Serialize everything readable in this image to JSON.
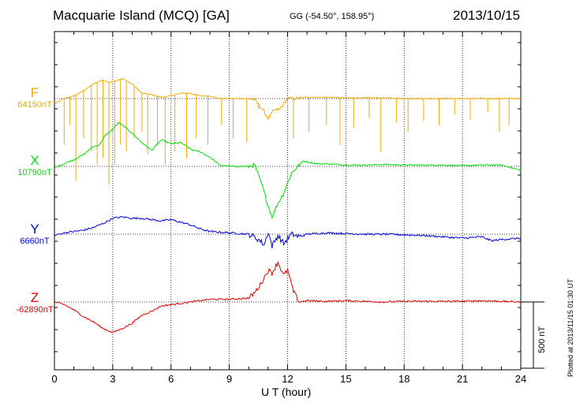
{
  "header": {
    "title": "Macquarie Island (MCQ)  [GA]",
    "coords": "GG (-54.50°, 158.95°)",
    "date": "2013/10/15"
  },
  "footnote": "Plotted at 2013/11/15 01:30 UT",
  "chart_data": {
    "type": "line",
    "xlabel": "U T (hour)",
    "xlim": [
      0,
      24
    ],
    "x_ticks": [
      "0",
      "3",
      "6",
      "9",
      "12",
      "15",
      "18",
      "21",
      "24"
    ],
    "grid": true,
    "y_units": "nT",
    "scale_bar": {
      "label": "500 nT",
      "value_nT": 500
    },
    "series": [
      {
        "name": "F",
        "baseline_label": "64150nT",
        "color": "#f5a800",
        "x": [
          0,
          0.5,
          1,
          1.5,
          2,
          2.5,
          2.8,
          3,
          3.5,
          4,
          4.5,
          5,
          5.5,
          6,
          6.5,
          7,
          7.5,
          8,
          8.5,
          9,
          9.5,
          10,
          10.3,
          10.7,
          11,
          11.3,
          11.6,
          12,
          12.5,
          13,
          14,
          15,
          16,
          17,
          18,
          19,
          20,
          21,
          22,
          23,
          24
        ],
        "y": [
          -40,
          0,
          20,
          60,
          110,
          140,
          120,
          130,
          150,
          110,
          40,
          30,
          10,
          20,
          40,
          40,
          20,
          20,
          0,
          0,
          0,
          0,
          -10,
          -80,
          -150,
          -90,
          -80,
          0,
          0,
          10,
          10,
          5,
          5,
          5,
          0,
          0,
          0,
          0,
          0,
          0,
          0
        ],
        "spikes": [
          {
            "x": 0.5,
            "y": -350
          },
          {
            "x": 0.8,
            "y": -200
          },
          {
            "x": 1.1,
            "y": -620
          },
          {
            "x": 1.5,
            "y": -300
          },
          {
            "x": 1.9,
            "y": -400
          },
          {
            "x": 2.2,
            "y": -500
          },
          {
            "x": 2.5,
            "y": -450
          },
          {
            "x": 2.8,
            "y": -650
          },
          {
            "x": 3.1,
            "y": -500
          },
          {
            "x": 3.4,
            "y": -350
          },
          {
            "x": 3.7,
            "y": -400
          },
          {
            "x": 4.1,
            "y": -300
          },
          {
            "x": 4.5,
            "y": -250
          },
          {
            "x": 4.8,
            "y": -420
          },
          {
            "x": 5.3,
            "y": -360
          },
          {
            "x": 5.7,
            "y": -500
          },
          {
            "x": 6.2,
            "y": -400
          },
          {
            "x": 6.8,
            "y": -450
          },
          {
            "x": 7.3,
            "y": -300
          },
          {
            "x": 7.9,
            "y": -350
          },
          {
            "x": 8.6,
            "y": -200
          },
          {
            "x": 9.2,
            "y": -300
          },
          {
            "x": 9.9,
            "y": -330
          },
          {
            "x": 10.5,
            "y": -80
          },
          {
            "x": 12.3,
            "y": -300
          },
          {
            "x": 13.1,
            "y": -250
          },
          {
            "x": 14.0,
            "y": -200
          },
          {
            "x": 14.7,
            "y": -350
          },
          {
            "x": 15.4,
            "y": -220
          },
          {
            "x": 16.2,
            "y": -150
          },
          {
            "x": 16.8,
            "y": -400
          },
          {
            "x": 17.6,
            "y": -180
          },
          {
            "x": 18.2,
            "y": -250
          },
          {
            "x": 19.0,
            "y": -170
          },
          {
            "x": 19.8,
            "y": -200
          },
          {
            "x": 20.6,
            "y": -120
          },
          {
            "x": 21.4,
            "y": -160
          },
          {
            "x": 22.3,
            "y": -100
          },
          {
            "x": 22.9,
            "y": -250
          },
          {
            "x": 23.4,
            "y": -200
          }
        ]
      },
      {
        "name": "X",
        "baseline_label": "10790nT",
        "color": "#00e000",
        "x": [
          0,
          0.5,
          1,
          1.5,
          2,
          2.3,
          2.6,
          3,
          3.3,
          3.6,
          4,
          4.5,
          5,
          5.5,
          6,
          6.5,
          7,
          7.5,
          8,
          8.5,
          9,
          10,
          10.3,
          10.7,
          11,
          11.2,
          11.5,
          11.8,
          12.2,
          12.8,
          13.5,
          14,
          15,
          16,
          17,
          18,
          19,
          20,
          21,
          22,
          23,
          24
        ],
        "y": [
          -10,
          20,
          50,
          90,
          150,
          160,
          230,
          280,
          330,
          300,
          250,
          180,
          120,
          200,
          170,
          180,
          130,
          110,
          70,
          10,
          0,
          0,
          10,
          -150,
          -300,
          -380,
          -280,
          -200,
          -50,
          40,
          20,
          20,
          10,
          10,
          15,
          10,
          10,
          10,
          5,
          10,
          10,
          -30
        ],
        "noise_nT": 10
      },
      {
        "name": "Y",
        "baseline_label": "6660nT",
        "color": "#0000e0",
        "x": [
          0,
          0.5,
          1,
          1.5,
          2,
          2.5,
          3,
          3.5,
          4,
          4.5,
          5,
          5.5,
          6,
          6.5,
          7,
          7.5,
          8,
          9,
          10,
          10.5,
          10.8,
          11,
          11.2,
          11.5,
          11.8,
          12.2,
          12.6,
          13,
          14,
          15,
          16,
          17,
          18,
          19,
          20,
          21,
          22,
          22.5,
          23,
          24
        ],
        "y": [
          -10,
          10,
          20,
          30,
          50,
          80,
          120,
          130,
          120,
          120,
          110,
          100,
          110,
          90,
          70,
          40,
          20,
          10,
          0,
          -40,
          -80,
          20,
          -90,
          -10,
          -70,
          0,
          -20,
          0,
          10,
          5,
          0,
          0,
          -5,
          -10,
          -20,
          -30,
          -20,
          -50,
          -40,
          -30
        ],
        "noise_nT": 14
      },
      {
        "name": "Z",
        "baseline_label": "-62890nT",
        "color": "#e00000",
        "x": [
          0,
          0.5,
          1,
          1.5,
          2,
          2.5,
          3,
          3.5,
          4,
          4.5,
          5,
          5.5,
          6,
          6.5,
          7,
          7.5,
          8,
          9,
          10,
          10.3,
          10.6,
          11,
          11.2,
          11.5,
          11.8,
          12,
          12.3,
          12.6,
          13,
          14,
          15,
          16,
          17,
          18,
          19,
          20,
          21,
          22,
          23,
          24
        ],
        "y": [
          0,
          -20,
          -60,
          -110,
          -150,
          -200,
          -230,
          -200,
          -160,
          -100,
          -70,
          -30,
          -20,
          -10,
          0,
          10,
          20,
          20,
          30,
          70,
          130,
          240,
          220,
          300,
          200,
          240,
          80,
          0,
          10,
          5,
          10,
          5,
          0,
          5,
          5,
          5,
          5,
          10,
          5,
          0
        ],
        "noise_nT": 12
      }
    ]
  }
}
